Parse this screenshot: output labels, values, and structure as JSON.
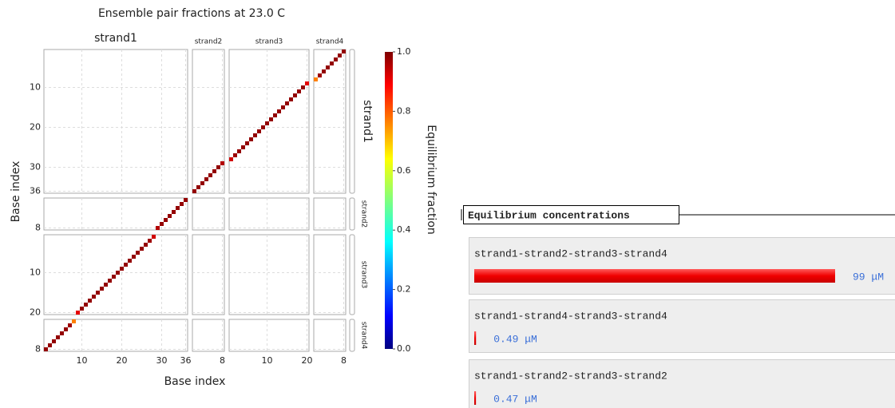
{
  "plot": {
    "title": "Ensemble pair fractions at 23.0 C",
    "x_label": "Base index",
    "y_label": "Base index",
    "strands": [
      {
        "name": "strand1",
        "length": 36,
        "ticks": [
          10,
          20,
          30,
          36
        ]
      },
      {
        "name": "strand2",
        "length": 8,
        "ticks": [
          8
        ]
      },
      {
        "name": "strand3",
        "length": 20,
        "ticks": [
          10,
          20
        ]
      },
      {
        "name": "strand4",
        "length": 8,
        "ticks": [
          8
        ]
      }
    ],
    "pairs": [
      [
        0,
        1,
        3,
        8,
        0.98
      ],
      [
        0,
        2,
        3,
        7,
        0.98
      ],
      [
        0,
        3,
        3,
        6,
        0.98
      ],
      [
        0,
        4,
        3,
        5,
        0.98
      ],
      [
        0,
        5,
        3,
        4,
        0.98
      ],
      [
        0,
        6,
        3,
        3,
        0.98
      ],
      [
        0,
        7,
        3,
        2,
        0.97
      ],
      [
        0,
        8,
        3,
        1,
        0.75
      ],
      [
        0,
        9,
        2,
        20,
        0.9
      ],
      [
        0,
        10,
        2,
        19,
        0.98
      ],
      [
        0,
        11,
        2,
        18,
        0.98
      ],
      [
        0,
        12,
        2,
        17,
        0.98
      ],
      [
        0,
        13,
        2,
        16,
        0.98
      ],
      [
        0,
        14,
        2,
        15,
        0.98
      ],
      [
        0,
        15,
        2,
        14,
        0.98
      ],
      [
        0,
        16,
        2,
        13,
        0.98
      ],
      [
        0,
        17,
        2,
        12,
        0.98
      ],
      [
        0,
        18,
        2,
        11,
        0.98
      ],
      [
        0,
        19,
        2,
        10,
        0.98
      ],
      [
        0,
        20,
        2,
        9,
        0.98
      ],
      [
        0,
        21,
        2,
        8,
        0.98
      ],
      [
        0,
        22,
        2,
        7,
        0.98
      ],
      [
        0,
        23,
        2,
        6,
        0.98
      ],
      [
        0,
        24,
        2,
        5,
        0.98
      ],
      [
        0,
        25,
        2,
        4,
        0.98
      ],
      [
        0,
        26,
        2,
        3,
        0.98
      ],
      [
        0,
        27,
        2,
        2,
        0.97
      ],
      [
        0,
        28,
        2,
        1,
        0.92
      ],
      [
        0,
        29,
        1,
        8,
        0.95
      ],
      [
        0,
        30,
        1,
        7,
        0.98
      ],
      [
        0,
        31,
        1,
        6,
        0.98
      ],
      [
        0,
        32,
        1,
        5,
        0.98
      ],
      [
        0,
        33,
        1,
        4,
        0.98
      ],
      [
        0,
        34,
        1,
        3,
        0.98
      ],
      [
        0,
        35,
        1,
        2,
        0.98
      ],
      [
        0,
        36,
        1,
        1,
        0.98
      ]
    ],
    "colorbar": {
      "label": "Equilibrium fraction",
      "lim": [
        0,
        1
      ],
      "ticks": [
        {
          "value": 0,
          "label": "0.0"
        },
        {
          "value": 0.2,
          "label": "0.2"
        },
        {
          "value": 0.4,
          "label": "0.4"
        },
        {
          "value": 0.6,
          "label": "0.6"
        },
        {
          "value": 0.8,
          "label": "0.8"
        },
        {
          "value": 1,
          "label": "1.0"
        }
      ]
    }
  },
  "concentrations": {
    "title": "Equilibrium concentrations",
    "complexes": [
      {
        "name": "strand1-strand2-strand3-strand4",
        "value": 99,
        "label": "99 μM"
      },
      {
        "name": "strand1-strand4-strand3-strand4",
        "value": 0.49,
        "label": "0.49 μM"
      },
      {
        "name": "strand1-strand2-strand3-strand2",
        "value": 0.47,
        "label": "0.47 μM"
      }
    ]
  }
}
